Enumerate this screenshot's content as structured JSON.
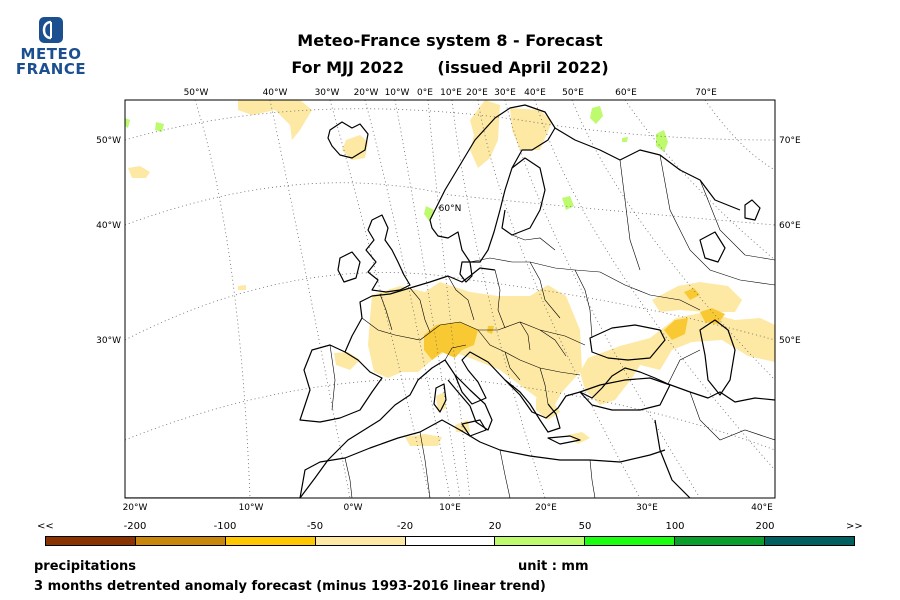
{
  "logo": {
    "line1": "METEO",
    "line2": "FRANCE",
    "color": "#1b4f8f"
  },
  "title": {
    "line1": "Meteo-France system 8  -  Forecast",
    "line2": "For MJJ 2022      (issued April 2022)"
  },
  "map": {
    "top_lon_labels": [
      "50°W",
      "40°W",
      "30°W",
      "20°W",
      "10°W",
      "0°E",
      "10°E",
      "20°E",
      "30°E",
      "40°E",
      "50°E",
      "60°E",
      "70°E"
    ],
    "left_lat_labels": [
      "50°W",
      "40°W",
      "30°W"
    ],
    "right_labels": [
      "70°E",
      "60°E",
      "50°E"
    ],
    "bottom_lon_labels": [
      "20°W",
      "10°W",
      "0°W",
      "10°E",
      "20°E",
      "30°E",
      "40°E"
    ],
    "inner_label": "60°N",
    "dry_color": "#fde9a4",
    "strong_dry_color": "#ffc000",
    "wet_color": "#bdfa6e",
    "coast_color": "#000000"
  },
  "colorbar": {
    "left_arrow": "<<",
    "right_arrow": ">>",
    "ticks": [
      "-200",
      "-100",
      "-50",
      "-20",
      "20",
      "50",
      "100",
      "200"
    ],
    "colors": [
      "#8b3300",
      "#c8860a",
      "#ffc700",
      "#fde9a4",
      "#ffffff",
      "#bdfa6e",
      "#19ff0f",
      "#0a9e2d",
      "#005f5f"
    ]
  },
  "footer": {
    "variable": "precipitations",
    "unit": "unit : mm",
    "description": "3 months detrented anomaly forecast (minus 1993-2016 linear trend)"
  }
}
